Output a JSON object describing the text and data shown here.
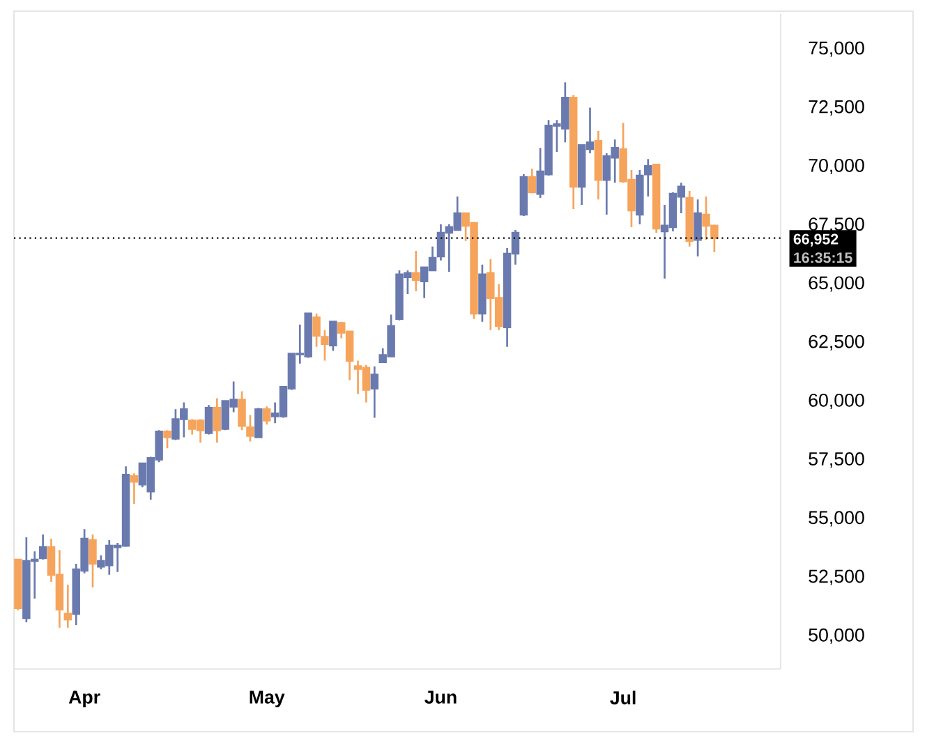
{
  "chart_data": {
    "type": "candlestick",
    "categories": [
      null,
      null,
      null,
      null,
      null,
      null,
      null,
      null,
      "Apr",
      null,
      null,
      null,
      null,
      null,
      null,
      null,
      null,
      null,
      null,
      null,
      null,
      null,
      null,
      null,
      null,
      null,
      null,
      null,
      null,
      null,
      "May",
      null,
      null,
      null,
      null,
      null,
      null,
      null,
      null,
      null,
      null,
      null,
      null,
      null,
      null,
      null,
      null,
      null,
      null,
      null,
      null,
      "Jun",
      null,
      null,
      null,
      null,
      null,
      null,
      null,
      null,
      null,
      null,
      null,
      null,
      null,
      null,
      null,
      null,
      null,
      null,
      null,
      null,
      null,
      "Jul",
      null,
      null,
      null,
      null,
      null,
      null,
      null,
      null,
      null,
      null,
      null
    ],
    "ohlc": [
      [
        53260,
        53300,
        51100,
        51190
      ],
      [
        50770,
        54210,
        50590,
        53200
      ],
      [
        53200,
        53610,
        51600,
        53260
      ],
      [
        53320,
        54330,
        53260,
        53790
      ],
      [
        53790,
        54150,
        52310,
        52610
      ],
      [
        52610,
        53670,
        50360,
        51130
      ],
      [
        50950,
        52190,
        50360,
        50710
      ],
      [
        50950,
        53080,
        50470,
        52840
      ],
      [
        52790,
        54560,
        52670,
        54150
      ],
      [
        54090,
        54330,
        52070,
        53080
      ],
      [
        52960,
        53440,
        52840,
        53200
      ],
      [
        53020,
        54090,
        52610,
        53850
      ],
      [
        53790,
        53970,
        52730,
        53850
      ],
      [
        53850,
        57230,
        53800,
        56870
      ],
      [
        56810,
        56930,
        55630,
        56580
      ],
      [
        56460,
        57350,
        56340,
        57350
      ],
      [
        56160,
        57640,
        55810,
        57580
      ],
      [
        57520,
        58770,
        57410,
        58710
      ],
      [
        58710,
        58770,
        58000,
        58470
      ],
      [
        58410,
        59660,
        58350,
        59240
      ],
      [
        59240,
        59950,
        58470,
        59660
      ],
      [
        59180,
        59240,
        58590,
        58830
      ],
      [
        59180,
        59240,
        58240,
        58770
      ],
      [
        58650,
        59840,
        58590,
        59720
      ],
      [
        59720,
        60130,
        58240,
        58770
      ],
      [
        58830,
        60010,
        58770,
        60010
      ],
      [
        59780,
        60840,
        59540,
        60070
      ],
      [
        60070,
        60430,
        58770,
        58950
      ],
      [
        58890,
        59420,
        58290,
        58530
      ],
      [
        58470,
        59720,
        58470,
        59660
      ],
      [
        59660,
        59780,
        59010,
        59180
      ],
      [
        59360,
        59950,
        59070,
        59480
      ],
      [
        59360,
        60610,
        59300,
        60610
      ],
      [
        60550,
        62030,
        60490,
        62030
      ],
      [
        62000,
        63270,
        61610,
        62030
      ],
      [
        61910,
        63740,
        61850,
        63740
      ],
      [
        63570,
        63740,
        62320,
        62800
      ],
      [
        62740,
        63030,
        61730,
        62440
      ],
      [
        62380,
        63390,
        62150,
        63390
      ],
      [
        63330,
        63390,
        62680,
        62920
      ],
      [
        62970,
        62970,
        60900,
        61730
      ],
      [
        61490,
        61730,
        60310,
        61380
      ],
      [
        61430,
        61550,
        59950,
        60490
      ],
      [
        60550,
        61490,
        59300,
        61140
      ],
      [
        61670,
        62260,
        61670,
        61970
      ],
      [
        61910,
        63690,
        61910,
        63210
      ],
      [
        63510,
        65580,
        63450,
        65400
      ],
      [
        65290,
        65580,
        64570,
        65460
      ],
      [
        65460,
        66410,
        64690,
        65170
      ],
      [
        65110,
        65700,
        64400,
        65700
      ],
      [
        65580,
        66590,
        65580,
        66110
      ],
      [
        66170,
        67540,
        66000,
        67180
      ],
      [
        67180,
        67540,
        65520,
        67420
      ],
      [
        67300,
        68720,
        67300,
        68010
      ],
      [
        68010,
        68010,
        66830,
        67480
      ],
      [
        67600,
        67600,
        63510,
        63740
      ],
      [
        63740,
        65820,
        63390,
        65400
      ],
      [
        65460,
        66060,
        63030,
        64400
      ],
      [
        64400,
        64990,
        63030,
        63210
      ],
      [
        63150,
        66530,
        62320,
        66290
      ],
      [
        66290,
        67300,
        65820,
        67180
      ],
      [
        67950,
        69670,
        67890,
        69550
      ],
      [
        69550,
        69910,
        68900,
        68900
      ],
      [
        68840,
        70790,
        68660,
        69790
      ],
      [
        69670,
        71980,
        69610,
        71740
      ],
      [
        71740,
        71980,
        70620,
        71800
      ],
      [
        71620,
        73580,
        71030,
        72930
      ],
      [
        72930,
        73050,
        68190,
        69140
      ],
      [
        69140,
        70910,
        68370,
        70910
      ],
      [
        70740,
        72510,
        70560,
        71030
      ],
      [
        71090,
        71510,
        68600,
        69430
      ],
      [
        69430,
        70560,
        67950,
        70440
      ],
      [
        70380,
        71150,
        69310,
        70790
      ],
      [
        70740,
        71860,
        69310,
        69370
      ],
      [
        69430,
        69850,
        67420,
        68130
      ],
      [
        67950,
        69850,
        67540,
        69610
      ],
      [
        69670,
        70320,
        68720,
        70020
      ],
      [
        70080,
        70080,
        67180,
        67360
      ],
      [
        67240,
        68370,
        65230,
        67480
      ],
      [
        67420,
        68900,
        67240,
        68840
      ],
      [
        68720,
        69310,
        68010,
        69140
      ],
      [
        68660,
        68960,
        66590,
        66830
      ],
      [
        66880,
        68600,
        66170,
        68010
      ],
      [
        67950,
        68720,
        66880,
        67480
      ],
      [
        67480,
        67480,
        66350,
        66952
      ]
    ],
    "colors": [
      "#f6a45c",
      "#6a7aae",
      "#6a7aae",
      "#6a7aae",
      "#f6a45c",
      "#f6a45c",
      "#f6a45c",
      "#6a7aae",
      "#6a7aae",
      "#f6a45c",
      "#6a7aae",
      "#6a7aae",
      "#6a7aae",
      "#6a7aae",
      "#f6a45c",
      "#6a7aae",
      "#6a7aae",
      "#6a7aae",
      "#f6a45c",
      "#6a7aae",
      "#6a7aae",
      "#f6a45c",
      "#f6a45c",
      "#6a7aae",
      "#f6a45c",
      "#6a7aae",
      "#6a7aae",
      "#f6a45c",
      "#f6a45c",
      "#6a7aae",
      "#f6a45c",
      "#6a7aae",
      "#6a7aae",
      "#6a7aae",
      "#6a7aae",
      "#6a7aae",
      "#f6a45c",
      "#f6a45c",
      "#6a7aae",
      "#f6a45c",
      "#f6a45c",
      "#f6a45c",
      "#f6a45c",
      "#6a7aae",
      "#6a7aae",
      "#6a7aae",
      "#6a7aae",
      "#6a7aae",
      "#f6a45c",
      "#6a7aae",
      "#6a7aae",
      "#6a7aae",
      "#6a7aae",
      "#6a7aae",
      "#f6a45c",
      "#f6a45c",
      "#6a7aae",
      "#f6a45c",
      "#f6a45c",
      "#6a7aae",
      "#6a7aae",
      "#6a7aae",
      "#f6a45c",
      "#6a7aae",
      "#6a7aae",
      "#6a7aae",
      "#6a7aae",
      "#f6a45c",
      "#6a7aae",
      "#6a7aae",
      "#f6a45c",
      "#6a7aae",
      "#6a7aae",
      "#f6a45c",
      "#f6a45c",
      "#6a7aae",
      "#6a7aae",
      "#f6a45c",
      "#6a7aae",
      "#6a7aae",
      "#6a7aae",
      "#f6a45c",
      "#6a7aae",
      "#f6a45c",
      "#f6a45c"
    ],
    "ylim": [
      48600,
      76500
    ],
    "yticks": [
      {
        "value": 50000,
        "label": "50,000"
      },
      {
        "value": 52500,
        "label": "52,500"
      },
      {
        "value": 55000,
        "label": "55,000"
      },
      {
        "value": 57500,
        "label": "57,500"
      },
      {
        "value": 60000,
        "label": "60,000"
      },
      {
        "value": 62500,
        "label": "62,500"
      },
      {
        "value": 65000,
        "label": "65,000"
      },
      {
        "value": 67500,
        "label": "67,500"
      },
      {
        "value": 70000,
        "label": "70,000"
      },
      {
        "value": 72500,
        "label": "72,500"
      },
      {
        "value": 75000,
        "label": "75,000"
      }
    ],
    "ref_lines": [
      {
        "axis": "y",
        "value": 66952,
        "label": "66,952",
        "color": "#000000",
        "line_style": "dotted"
      }
    ],
    "annotations": [
      "16:35:15"
    ]
  }
}
